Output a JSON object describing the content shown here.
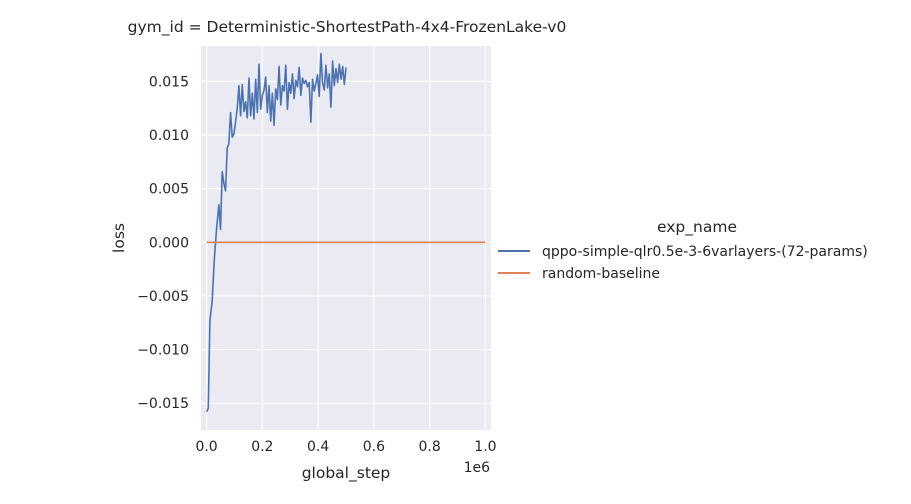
{
  "chart_data": {
    "type": "line",
    "title": "gym_id = Deterministic-ShortestPath-4x4-FrozenLake-v0",
    "xlabel": "global_step",
    "ylabel": "loss",
    "x_offset_label": "1e6",
    "xlim": [
      -0.02,
      1.02
    ],
    "ylim": [
      -0.0175,
      0.0183
    ],
    "x_ticks": [
      0.0,
      0.2,
      0.4,
      0.6,
      0.8,
      1.0
    ],
    "x_tick_labels": [
      "0.0",
      "0.2",
      "0.4",
      "0.6",
      "0.8",
      "1.0"
    ],
    "y_ticks": [
      -0.015,
      -0.01,
      -0.005,
      0.0,
      0.005,
      0.01,
      0.015
    ],
    "y_tick_labels": [
      "−0.015",
      "−0.010",
      "−0.005",
      "0.000",
      "0.005",
      "0.010",
      "0.015"
    ],
    "grid": true,
    "legend": {
      "title": "exp_name",
      "placement": "right-outside"
    },
    "series": [
      {
        "name": "qppo-simple-qlr0.5e-3-6varlayers-(72-params)",
        "color": "#4c72b0",
        "x": [
          0.0,
          0.006,
          0.012,
          0.02,
          0.028,
          0.036,
          0.044,
          0.05,
          0.056,
          0.062,
          0.068,
          0.074,
          0.08,
          0.086,
          0.092,
          0.098,
          0.104,
          0.11,
          0.116,
          0.122,
          0.128,
          0.134,
          0.14,
          0.146,
          0.152,
          0.158,
          0.164,
          0.17,
          0.176,
          0.182,
          0.188,
          0.194,
          0.2,
          0.206,
          0.212,
          0.218,
          0.224,
          0.23,
          0.236,
          0.242,
          0.248,
          0.254,
          0.26,
          0.266,
          0.272,
          0.278,
          0.284,
          0.29,
          0.296,
          0.302,
          0.308,
          0.314,
          0.32,
          0.326,
          0.332,
          0.338,
          0.344,
          0.35,
          0.356,
          0.362,
          0.368,
          0.374,
          0.38,
          0.386,
          0.392,
          0.398,
          0.404,
          0.41,
          0.416,
          0.422,
          0.428,
          0.434,
          0.44,
          0.446,
          0.452,
          0.458,
          0.464,
          0.47,
          0.476,
          0.482,
          0.488,
          0.494,
          0.5
        ],
        "y": [
          -0.0158,
          -0.0155,
          -0.0073,
          -0.0055,
          -0.0015,
          0.0013,
          0.0035,
          0.0012,
          0.0066,
          0.0055,
          0.0048,
          0.0088,
          0.0092,
          0.0121,
          0.0098,
          0.0101,
          0.0112,
          0.0125,
          0.0146,
          0.0118,
          0.0147,
          0.0122,
          0.0131,
          0.0116,
          0.0153,
          0.0118,
          0.0139,
          0.0115,
          0.0152,
          0.0121,
          0.0166,
          0.0124,
          0.0137,
          0.0142,
          0.0154,
          0.0121,
          0.0146,
          0.0113,
          0.0139,
          0.0109,
          0.0143,
          0.0133,
          0.0164,
          0.0128,
          0.0146,
          0.0141,
          0.0165,
          0.0124,
          0.0149,
          0.0139,
          0.0157,
          0.0134,
          0.0151,
          0.0145,
          0.0163,
          0.0137,
          0.0153,
          0.0148,
          0.0151,
          0.0145,
          0.0149,
          0.0112,
          0.0152,
          0.0141,
          0.0148,
          0.0156,
          0.0136,
          0.0176,
          0.0149,
          0.0142,
          0.0165,
          0.0144,
          0.0157,
          0.0126,
          0.0169,
          0.0146,
          0.0162,
          0.0149,
          0.0166,
          0.0152,
          0.0164,
          0.0147,
          0.0163
        ]
      },
      {
        "name": "random-baseline",
        "color": "#dd8452",
        "x": [
          0.0,
          1.0
        ],
        "y": [
          0.0,
          0.0
        ]
      }
    ]
  }
}
